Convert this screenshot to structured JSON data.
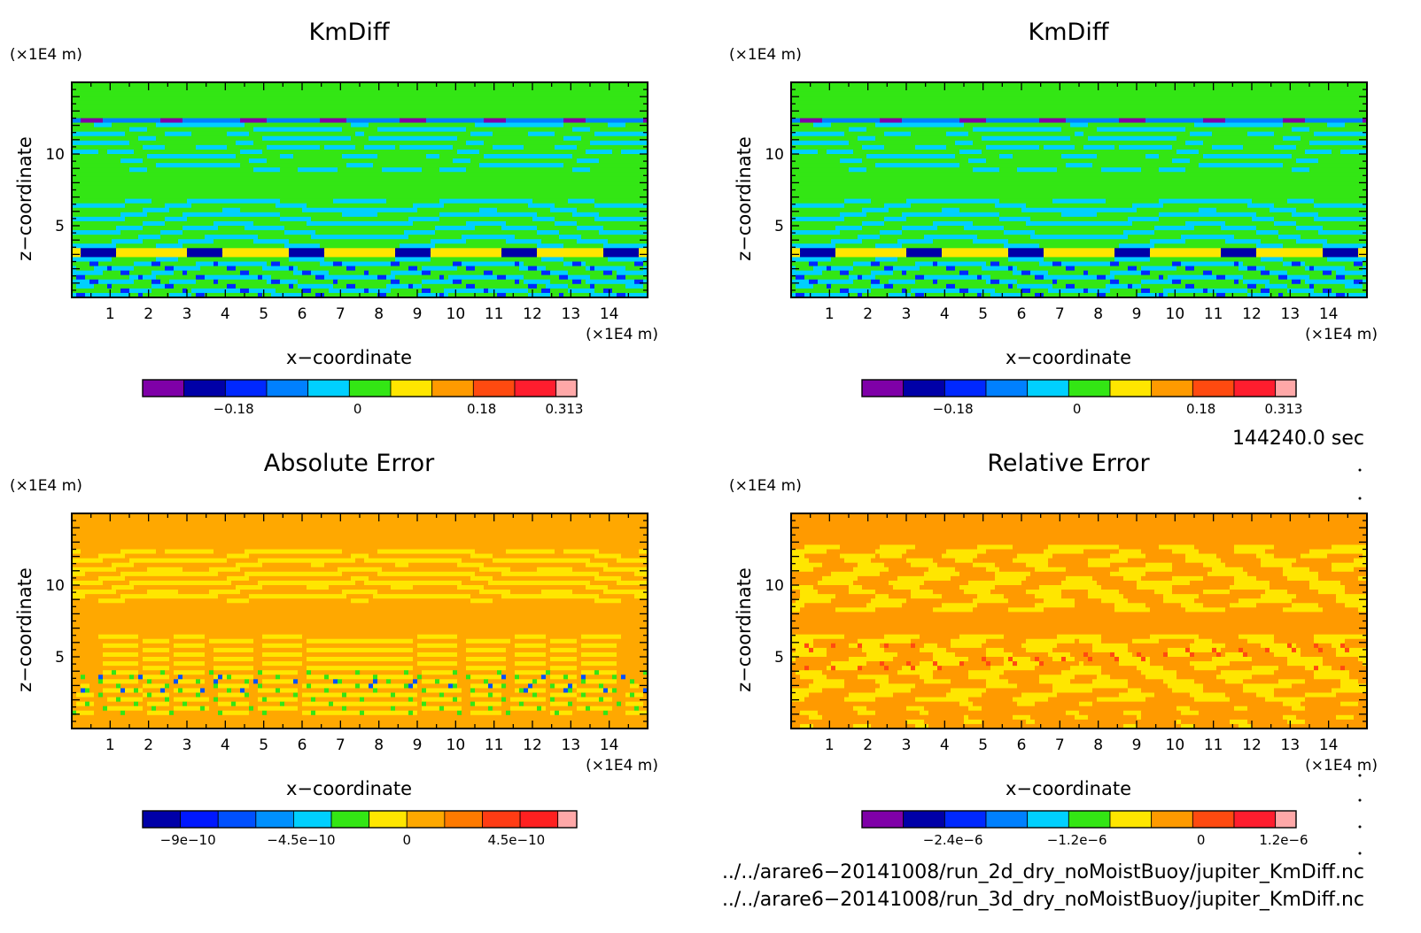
{
  "chart_data": [
    {
      "type": "heatmap",
      "title": "KmDiff",
      "xlabel": "x−coordinate",
      "ylabel": "z−coordinate",
      "x_unit": "(×1E4 m)",
      "y_unit": "(×1E4 m)",
      "xlim": [
        0,
        15
      ],
      "ylim": [
        0,
        15
      ],
      "xticks": [
        "1",
        "2",
        "3",
        "4",
        "5",
        "6",
        "7",
        "8",
        "9",
        "10",
        "11",
        "12",
        "13",
        "14"
      ],
      "yticks": [
        "5",
        "10"
      ],
      "field": "kmdiff",
      "colorbar": {
        "colors": [
          "#7f00a8",
          "#0000a8",
          "#0028ff",
          "#0080ff",
          "#00d0ff",
          "#33e614",
          "#ffe600",
          "#ff9a00",
          "#ff4a10",
          "#ff1d2e",
          "#ffa8a8"
        ],
        "labels": [
          "−0.18",
          "0",
          "0.18",
          "0.313"
        ]
      }
    },
    {
      "type": "heatmap",
      "title": "KmDiff",
      "xlabel": "x−coordinate",
      "ylabel": "z−coordinate",
      "x_unit": "(×1E4 m)",
      "y_unit": "(×1E4 m)",
      "xlim": [
        0,
        15
      ],
      "ylim": [
        0,
        15
      ],
      "xticks": [
        "1",
        "2",
        "3",
        "4",
        "5",
        "6",
        "7",
        "8",
        "9",
        "10",
        "11",
        "12",
        "13",
        "14"
      ],
      "yticks": [
        "5",
        "10"
      ],
      "field": "kmdiff",
      "colorbar": {
        "colors": [
          "#7f00a8",
          "#0000a8",
          "#0028ff",
          "#0080ff",
          "#00d0ff",
          "#33e614",
          "#ffe600",
          "#ff9a00",
          "#ff4a10",
          "#ff1d2e",
          "#ffa8a8"
        ],
        "labels": [
          "−0.18",
          "0",
          "0.18",
          "0.313"
        ]
      }
    },
    {
      "type": "heatmap",
      "title": "Absolute Error",
      "xlabel": "x−coordinate",
      "ylabel": "z−coordinate",
      "x_unit": "(×1E4 m)",
      "y_unit": "(×1E4 m)",
      "xlim": [
        0,
        15
      ],
      "ylim": [
        0,
        15
      ],
      "xticks": [
        "1",
        "2",
        "3",
        "4",
        "5",
        "6",
        "7",
        "8",
        "9",
        "10",
        "11",
        "12",
        "13",
        "14"
      ],
      "yticks": [
        "5",
        "10"
      ],
      "field": "abs",
      "colorbar": {
        "colors": [
          "#0000a8",
          "#0018ff",
          "#0050ff",
          "#0090ff",
          "#00d0ff",
          "#33e614",
          "#ffe600",
          "#ffa800",
          "#ff7a00",
          "#ff3c14",
          "#ff2020",
          "#ffa8a8"
        ],
        "labels": [
          "−9e−10",
          "−4.5e−10",
          "0",
          "4.5e−10"
        ]
      }
    },
    {
      "type": "heatmap",
      "title": "Relative Error",
      "xlabel": "x−coordinate",
      "ylabel": "z−coordinate",
      "x_unit": "(×1E4 m)",
      "y_unit": "(×1E4 m)",
      "xlim": [
        0,
        15
      ],
      "ylim": [
        0,
        15
      ],
      "xticks": [
        "1",
        "2",
        "3",
        "4",
        "5",
        "6",
        "7",
        "8",
        "9",
        "10",
        "11",
        "12",
        "13",
        "14"
      ],
      "yticks": [
        "5",
        "10"
      ],
      "field": "rel",
      "colorbar": {
        "colors": [
          "#7f00a8",
          "#0000a8",
          "#0028ff",
          "#0080ff",
          "#00d0ff",
          "#33e614",
          "#ffe600",
          "#ff9a00",
          "#ff4a10",
          "#ff1d2e",
          "#ffa8a8"
        ],
        "labels": [
          "−2.4e−6",
          "−1.2e−6",
          "0",
          "1.2e−6"
        ]
      }
    }
  ],
  "info": {
    "time": "144240.0 sec",
    "file1": "../../arare6−20141008/run_2d_dry_noMoistBuoy/jupiter_KmDiff.nc",
    "file2": "../../arare6−20141008/run_3d_dry_noMoistBuoy/jupiter_KmDiff.nc"
  }
}
